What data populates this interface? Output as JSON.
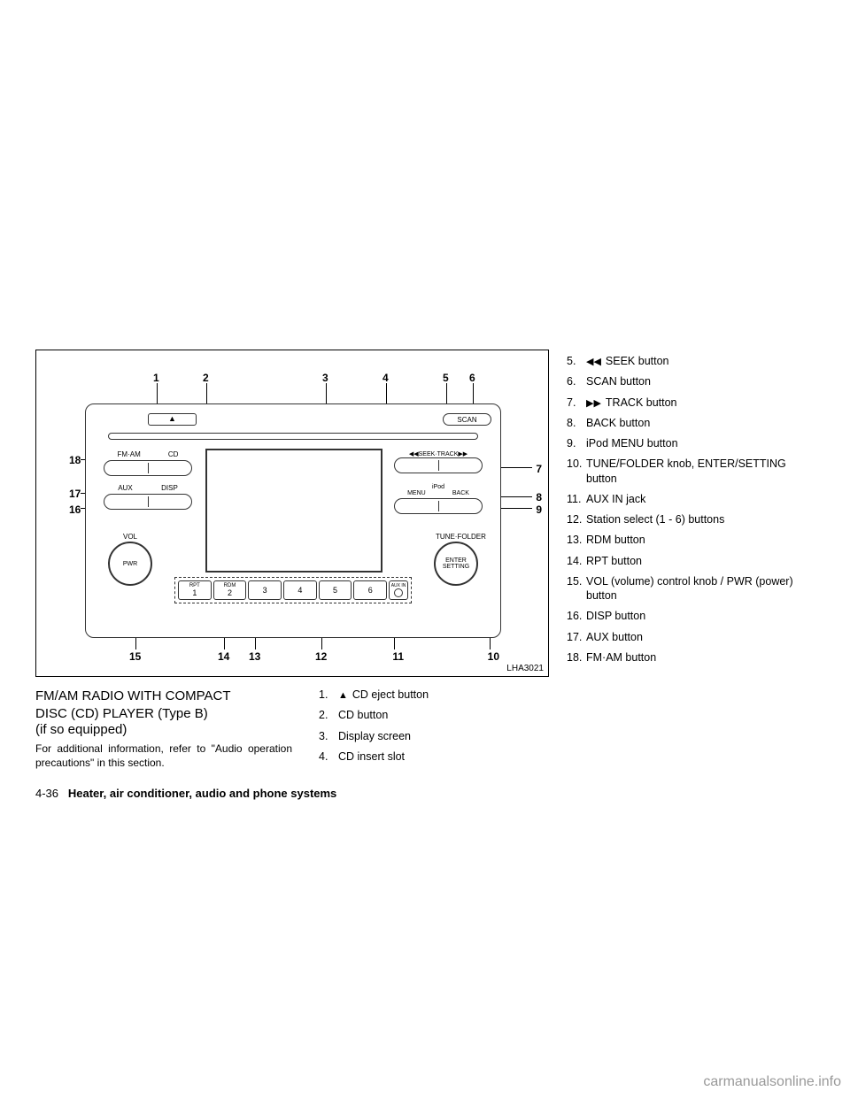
{
  "diagram": {
    "label": "LHA3021",
    "scan": "SCAN",
    "knob_left_label": "VOL",
    "knob_left_text": "PWR",
    "knob_right_label": "TUNE·FOLDER",
    "knob_right_text_1": "ENTER",
    "knob_right_text_2": "SETTING",
    "fm_am": "FM·AM",
    "cd": "CD",
    "aux": "AUX",
    "disp": "DISP",
    "seek_track": "◀◀SEEK·TRACK▶▶",
    "ipod": "iPod",
    "menu": "MENU",
    "back": "BACK",
    "rpt": "RPT",
    "rdm": "RDM",
    "aux_in": "AUX IN",
    "eject": "▲"
  },
  "callouts": {
    "n1": "1",
    "n2": "2",
    "n3": "3",
    "n4": "4",
    "n5": "5",
    "n6": "6",
    "n7": "7",
    "n8": "8",
    "n9": "9",
    "n10": "10",
    "n11": "11",
    "n12": "12",
    "n13": "13",
    "n14": "14",
    "n15": "15",
    "n16": "16",
    "n17": "17",
    "n18": "18"
  },
  "heading_line1": "FM/AM RADIO WITH COMPACT",
  "heading_line2": "DISC (CD) PLAYER (Type B)",
  "heading_line3": "(if so equipped)",
  "body_text": "For additional information, refer to \"Audio operation precautions\" in this section.",
  "list1": [
    {
      "num": "1.",
      "icon": "▲",
      "text": "CD eject button"
    },
    {
      "num": "2.",
      "icon": "",
      "text": "CD button"
    },
    {
      "num": "3.",
      "icon": "",
      "text": "Display screen"
    },
    {
      "num": "4.",
      "icon": "",
      "text": "CD insert slot"
    }
  ],
  "list2": [
    {
      "num": "5.",
      "icon": "◀◀",
      "text": "SEEK button"
    },
    {
      "num": "6.",
      "icon": "",
      "text": "SCAN button"
    },
    {
      "num": "7.",
      "icon": "▶▶",
      "text": "TRACK button"
    },
    {
      "num": "8.",
      "icon": "",
      "text": "BACK button"
    },
    {
      "num": "9.",
      "icon": "",
      "text": "iPod MENU button"
    },
    {
      "num": "10.",
      "icon": "",
      "text": "TUNE/FOLDER knob, ENTER/SETTING button"
    },
    {
      "num": "11.",
      "icon": "",
      "text": "AUX IN jack"
    },
    {
      "num": "12.",
      "icon": "",
      "text": "Station select (1 - 6) buttons"
    },
    {
      "num": "13.",
      "icon": "",
      "text": "RDM button"
    },
    {
      "num": "14.",
      "icon": "",
      "text": "RPT button"
    },
    {
      "num": "15.",
      "icon": "",
      "text": "VOL (volume) control knob / PWR (power) button"
    },
    {
      "num": "16.",
      "icon": "",
      "text": "DISP button"
    },
    {
      "num": "17.",
      "icon": "",
      "text": "AUX button"
    },
    {
      "num": "18.",
      "icon": "",
      "text": "FM·AM button"
    }
  ],
  "footer_page": "4-36",
  "footer_title": "Heater, air conditioner, audio and phone systems",
  "watermark": "carmanualsonline.info"
}
